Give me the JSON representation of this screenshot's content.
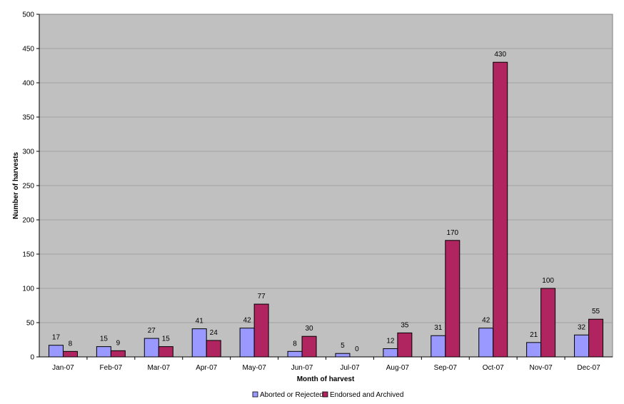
{
  "chart_data": {
    "type": "bar",
    "title": "",
    "xlabel": "Month of harvest",
    "ylabel": "Number of harvests",
    "ylim": [
      0,
      500
    ],
    "yticks": [
      0,
      50,
      100,
      150,
      200,
      250,
      300,
      350,
      400,
      450,
      500
    ],
    "grid": true,
    "legend_position": "bottom",
    "categories": [
      "Jan-07",
      "Feb-07",
      "Mar-07",
      "Apr-07",
      "May-07",
      "Jun-07",
      "Jul-07",
      "Aug-07",
      "Sep-07",
      "Oct-07",
      "Nov-07",
      "Dec-07"
    ],
    "series": [
      {
        "name": "Aborted or Rejected",
        "color": "#9999ff",
        "values": [
          17,
          15,
          27,
          41,
          42,
          8,
          5,
          12,
          31,
          42,
          21,
          32
        ]
      },
      {
        "name": "Endorsed and Archived",
        "color": "#b0245f",
        "values": [
          8,
          9,
          15,
          24,
          77,
          30,
          0,
          35,
          170,
          430,
          100,
          55
        ]
      }
    ],
    "plot_background": "#c0c0c0"
  }
}
